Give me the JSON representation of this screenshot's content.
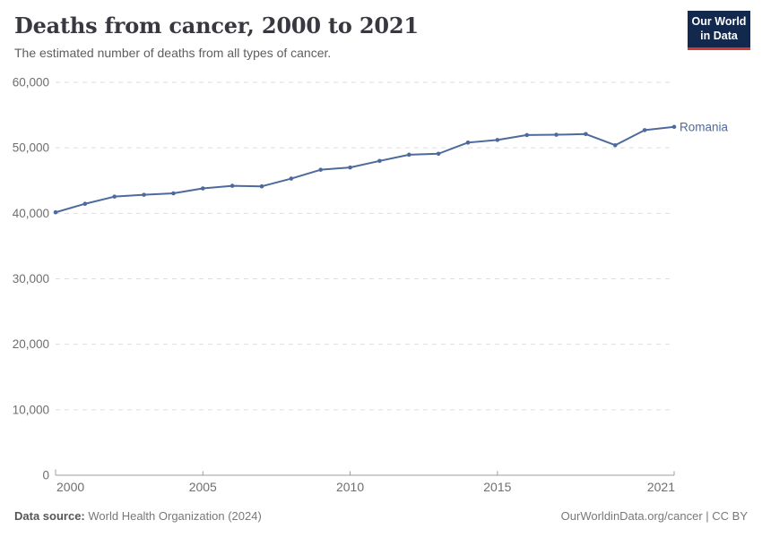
{
  "header": {
    "title": "Deaths from cancer, 2000 to 2021",
    "subtitle": "The estimated number of deaths from all types of cancer."
  },
  "logo": {
    "line1": "Our World",
    "line2": "in Data",
    "bg_color": "#12294d",
    "accent_color": "#d13b32"
  },
  "footer": {
    "source_label": "Data source:",
    "source_value": "World Health Organization (2024)",
    "attribution": "OurWorldinData.org/cancer | CC BY"
  },
  "chart_data": {
    "type": "line",
    "title": "Deaths from cancer, 2000 to 2021",
    "subtitle": "The estimated number of deaths from all types of cancer.",
    "xlabel": "",
    "ylabel": "",
    "ylim": [
      0,
      60000
    ],
    "yticks": [
      0,
      10000,
      20000,
      30000,
      40000,
      50000,
      60000
    ],
    "ytick_labels": [
      "0",
      "10,000",
      "20,000",
      "30,000",
      "40,000",
      "50,000",
      "60,000"
    ],
    "xticks": [
      2000,
      2005,
      2010,
      2015,
      2021
    ],
    "xtick_labels": [
      "2000",
      "2005",
      "2010",
      "2015",
      "2021"
    ],
    "xlim": [
      2000,
      2021
    ],
    "grid": "horizontal-dashed",
    "grid_color": "#dedede",
    "axis_color": "#9c9c9c",
    "tick_label_color": "#6f6f6f",
    "legend": "end-of-line-label",
    "x": [
      2000,
      2001,
      2002,
      2003,
      2004,
      2005,
      2006,
      2007,
      2008,
      2009,
      2010,
      2011,
      2012,
      2013,
      2014,
      2015,
      2016,
      2017,
      2018,
      2019,
      2020,
      2021
    ],
    "series": [
      {
        "name": "Romania",
        "color": "#4C6A9C",
        "values": [
          40150,
          41450,
          42550,
          42830,
          43050,
          43800,
          44200,
          44120,
          45300,
          46650,
          47000,
          48000,
          48950,
          49100,
          50800,
          51200,
          51950,
          52000,
          52100,
          50400,
          52700,
          53200
        ]
      }
    ]
  }
}
